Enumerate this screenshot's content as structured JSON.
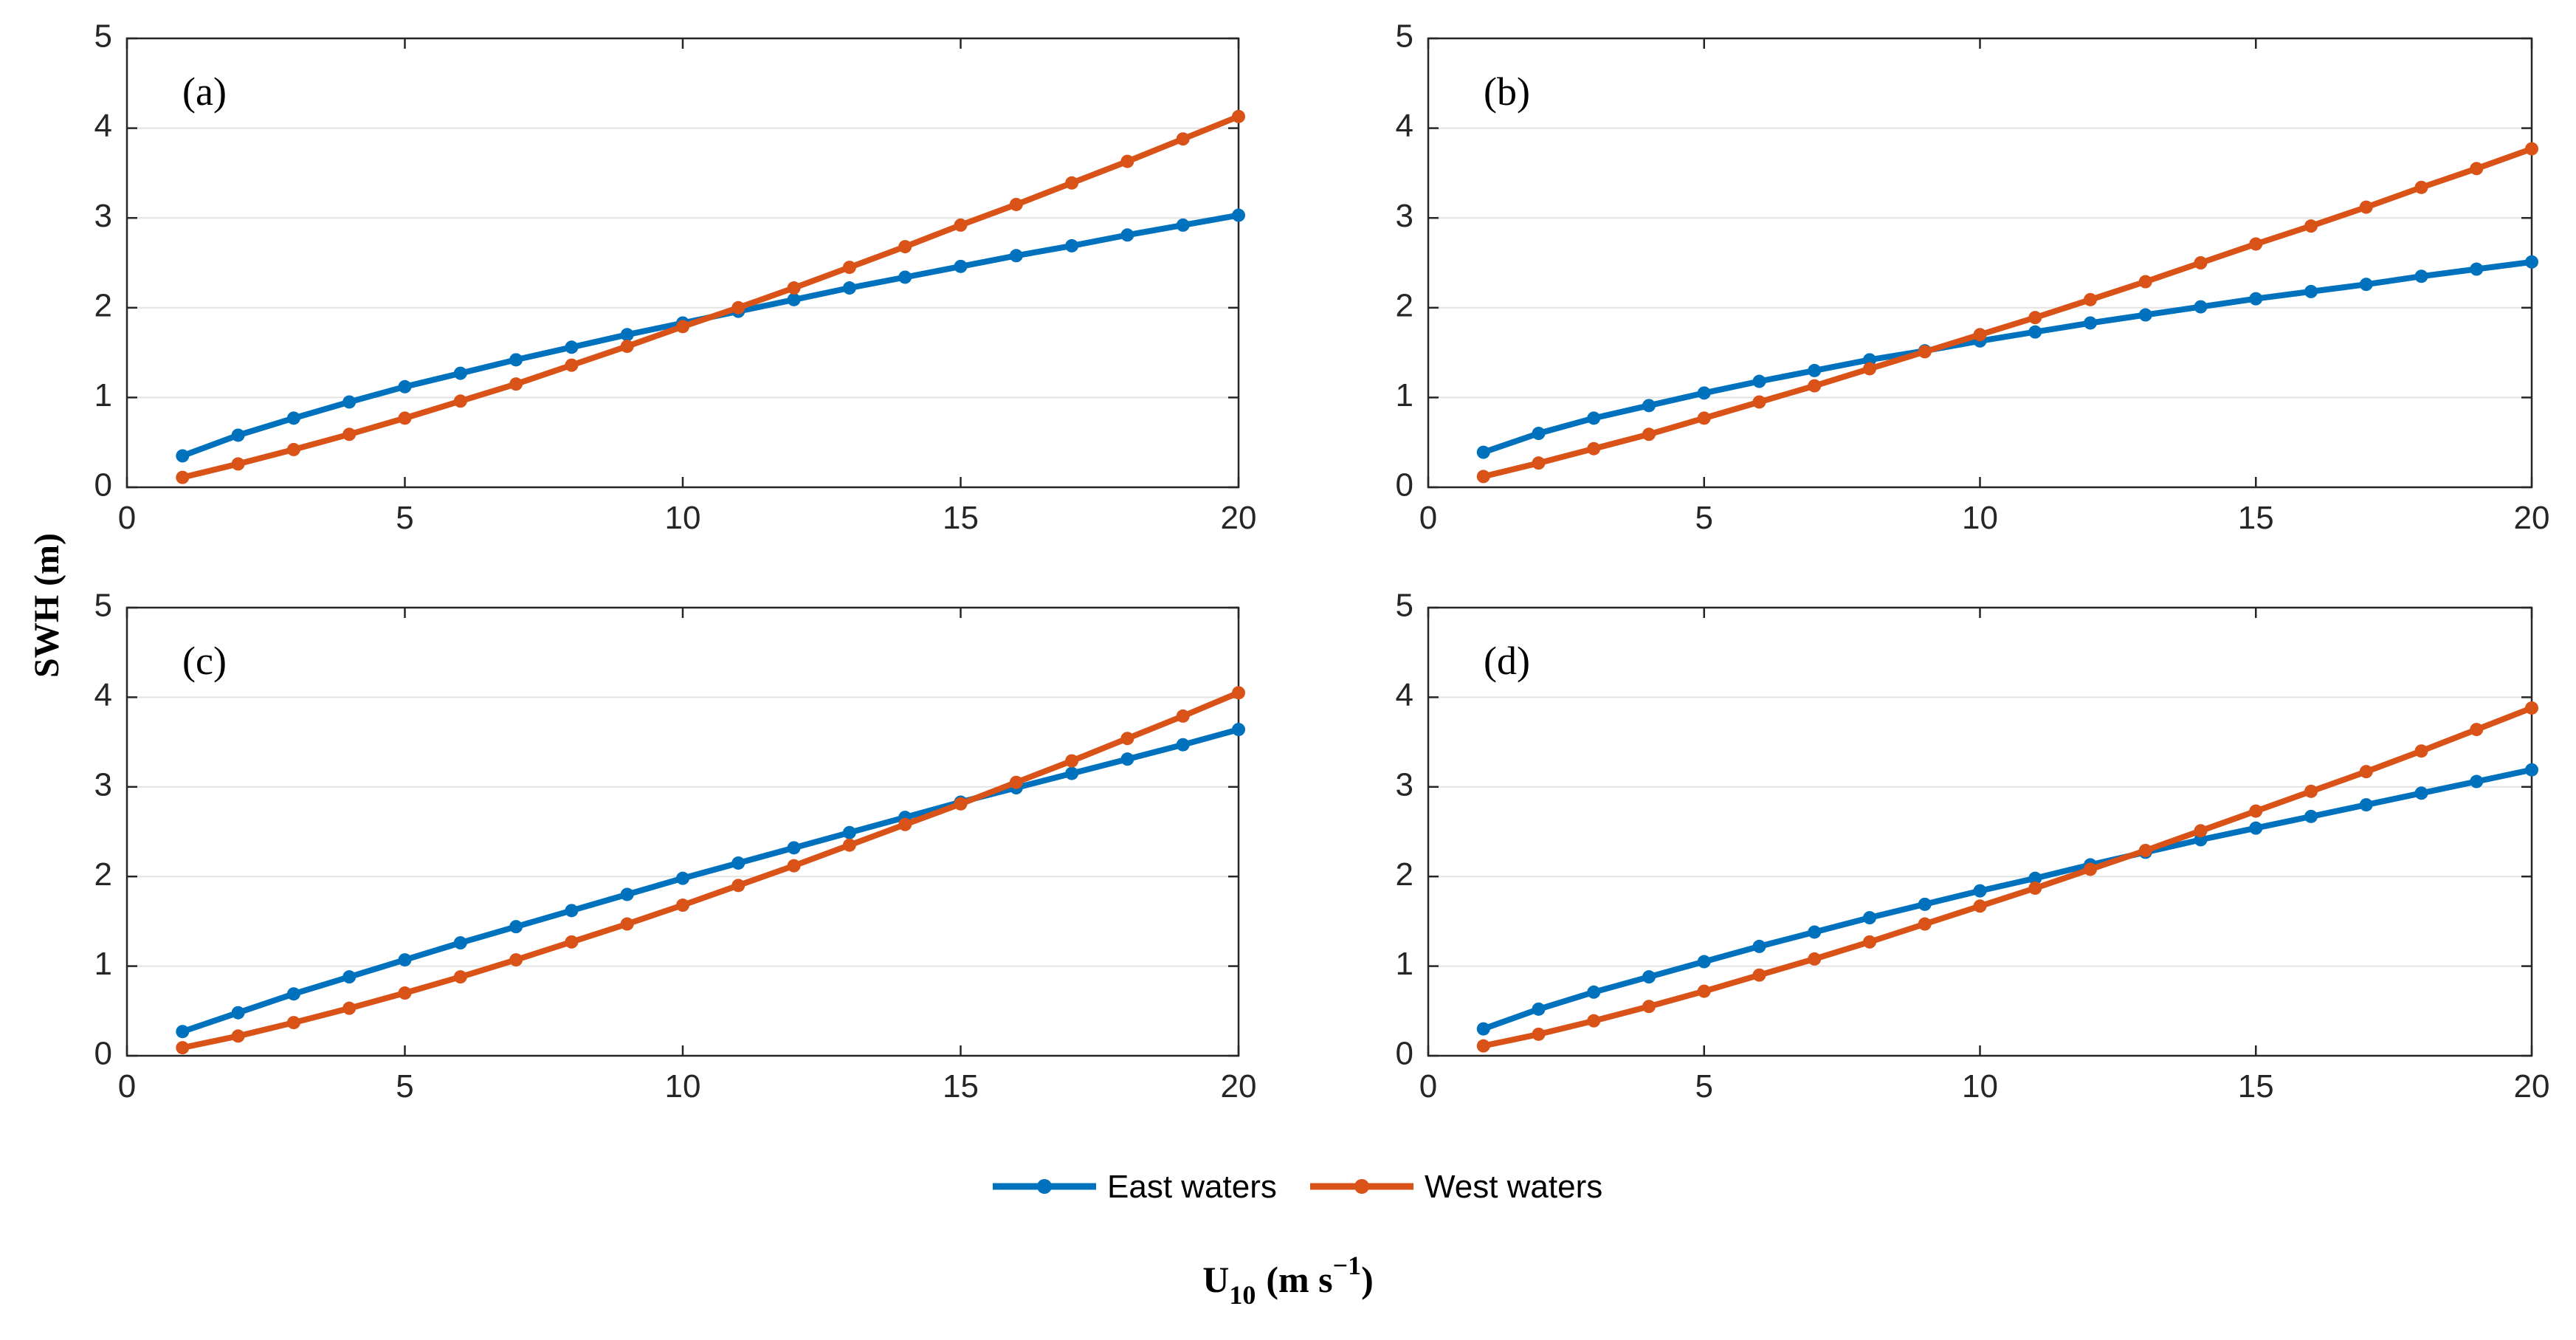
{
  "figure": {
    "ylabel": "SWH (m)",
    "xlabel_main": "U",
    "xlabel_sub": "10",
    "xlabel_unit": "(m s",
    "xlabel_sup": "−1",
    "xlabel_close": ")"
  },
  "legend": {
    "placement": "bottom-center",
    "items": [
      {
        "label": "East waters",
        "color": "#0072BD"
      },
      {
        "label": "West waters",
        "color": "#D95319"
      }
    ]
  },
  "chart_data": [
    {
      "type": "line",
      "panel_label": "(a)",
      "x": [
        1,
        2,
        3,
        4,
        5,
        6,
        7,
        8,
        9,
        10,
        11,
        12,
        13,
        14,
        15,
        16,
        17,
        18,
        19,
        20
      ],
      "xlim": [
        0,
        20
      ],
      "ylim": [
        0,
        5
      ],
      "xticks": [
        0,
        5,
        10,
        15,
        20
      ],
      "yticks": [
        0,
        1,
        2,
        3,
        4,
        5
      ],
      "grid": "horizontal",
      "series": [
        {
          "name": "East waters",
          "color": "#0072BD",
          "values": [
            0.35,
            0.58,
            0.77,
            0.95,
            1.12,
            1.27,
            1.42,
            1.56,
            1.7,
            1.83,
            1.96,
            2.09,
            2.22,
            2.34,
            2.46,
            2.58,
            2.69,
            2.81,
            2.92,
            3.03
          ]
        },
        {
          "name": "West waters",
          "color": "#D95319",
          "values": [
            0.11,
            0.26,
            0.42,
            0.59,
            0.77,
            0.96,
            1.15,
            1.36,
            1.57,
            1.79,
            2.0,
            2.22,
            2.45,
            2.68,
            2.92,
            3.15,
            3.39,
            3.63,
            3.88,
            4.13
          ]
        }
      ]
    },
    {
      "type": "line",
      "panel_label": "(b)",
      "x": [
        1,
        2,
        3,
        4,
        5,
        6,
        7,
        8,
        9,
        10,
        11,
        12,
        13,
        14,
        15,
        16,
        17,
        18,
        19,
        20
      ],
      "xlim": [
        0,
        20
      ],
      "ylim": [
        0,
        5
      ],
      "xticks": [
        0,
        5,
        10,
        15,
        20
      ],
      "yticks": [
        0,
        1,
        2,
        3,
        4,
        5
      ],
      "grid": "horizontal",
      "series": [
        {
          "name": "East waters",
          "color": "#0072BD",
          "values": [
            0.39,
            0.6,
            0.77,
            0.91,
            1.05,
            1.18,
            1.3,
            1.42,
            1.52,
            1.63,
            1.73,
            1.83,
            1.92,
            2.01,
            2.1,
            2.18,
            2.26,
            2.35,
            2.43,
            2.51
          ]
        },
        {
          "name": "West waters",
          "color": "#D95319",
          "values": [
            0.12,
            0.27,
            0.43,
            0.59,
            0.77,
            0.95,
            1.13,
            1.32,
            1.51,
            1.7,
            1.89,
            2.09,
            2.29,
            2.5,
            2.71,
            2.91,
            3.12,
            3.34,
            3.55,
            3.77
          ]
        }
      ]
    },
    {
      "type": "line",
      "panel_label": "(c)",
      "x": [
        1,
        2,
        3,
        4,
        5,
        6,
        7,
        8,
        9,
        10,
        11,
        12,
        13,
        14,
        15,
        16,
        17,
        18,
        19,
        20
      ],
      "xlim": [
        0,
        20
      ],
      "ylim": [
        0,
        5
      ],
      "xticks": [
        0,
        5,
        10,
        15,
        20
      ],
      "yticks": [
        0,
        1,
        2,
        3,
        4,
        5
      ],
      "grid": "horizontal",
      "series": [
        {
          "name": "East waters",
          "color": "#0072BD",
          "values": [
            0.27,
            0.48,
            0.69,
            0.88,
            1.07,
            1.26,
            1.44,
            1.62,
            1.8,
            1.98,
            2.15,
            2.32,
            2.49,
            2.66,
            2.83,
            2.99,
            3.15,
            3.31,
            3.47,
            3.64
          ]
        },
        {
          "name": "West waters",
          "color": "#D95319",
          "values": [
            0.09,
            0.22,
            0.37,
            0.53,
            0.7,
            0.88,
            1.07,
            1.27,
            1.47,
            1.68,
            1.9,
            2.12,
            2.35,
            2.58,
            2.81,
            3.05,
            3.29,
            3.54,
            3.79,
            4.05
          ]
        }
      ]
    },
    {
      "type": "line",
      "panel_label": "(d)",
      "x": [
        1,
        2,
        3,
        4,
        5,
        6,
        7,
        8,
        9,
        10,
        11,
        12,
        13,
        14,
        15,
        16,
        17,
        18,
        19,
        20
      ],
      "xlim": [
        0,
        20
      ],
      "ylim": [
        0,
        5
      ],
      "xticks": [
        0,
        5,
        10,
        15,
        20
      ],
      "yticks": [
        0,
        1,
        2,
        3,
        4,
        5
      ],
      "grid": "horizontal",
      "series": [
        {
          "name": "East waters",
          "color": "#0072BD",
          "values": [
            0.3,
            0.52,
            0.71,
            0.88,
            1.05,
            1.22,
            1.38,
            1.54,
            1.69,
            1.84,
            1.98,
            2.13,
            2.27,
            2.41,
            2.54,
            2.67,
            2.8,
            2.93,
            3.06,
            3.19
          ]
        },
        {
          "name": "West waters",
          "color": "#D95319",
          "values": [
            0.11,
            0.24,
            0.39,
            0.55,
            0.72,
            0.9,
            1.08,
            1.27,
            1.47,
            1.67,
            1.87,
            2.08,
            2.29,
            2.51,
            2.73,
            2.95,
            3.17,
            3.4,
            3.64,
            3.88
          ]
        }
      ]
    }
  ]
}
